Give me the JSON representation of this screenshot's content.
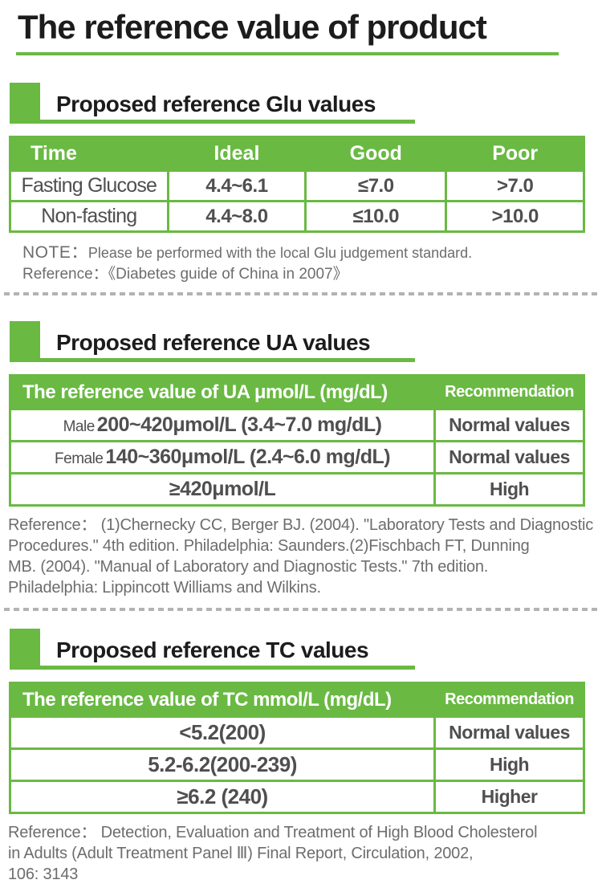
{
  "page": {
    "title": "The reference value of product"
  },
  "colors": {
    "accent_green": "#6ab943",
    "header_text": "#ffffff",
    "title_text": "#1c1c1c",
    "table_text": "#4f4f4f",
    "note_text": "#6d6d6d",
    "divider_gray": "#b4b2b2"
  },
  "sections": [
    {
      "heading": "Proposed reference Glu values",
      "table": {
        "headers": [
          "Time",
          "Ideal",
          "Good",
          "Poor"
        ],
        "rows": [
          [
            "Fasting Glucose",
            "4.4~6.1",
            "≤7.0",
            ">7.0"
          ],
          [
            "Non-fasting",
            "4.4~8.0",
            "≤10.0",
            ">10.0"
          ]
        ]
      },
      "note_label": "NOTE：",
      "note_text": "Please be performed with the local Glu judgement standard.",
      "reference_label": "Reference：",
      "reference_text": "《Diabetes guide of China in 2007》"
    },
    {
      "heading": "Proposed reference UA values",
      "table": {
        "headers": [
          "The reference value of UA  μmol/L (mg/dL)",
          "Recommendation"
        ],
        "rows": [
          {
            "prefix": "Male",
            "value": "200~420μmol/L (3.4~7.0 mg/dL)",
            "recommendation": "Normal values"
          },
          {
            "prefix": "Female",
            "value": "140~360μmol/L (2.4~6.0 mg/dL)",
            "recommendation": "Normal values"
          },
          {
            "prefix": "",
            "value": "≥420μmol/L",
            "recommendation": "High"
          }
        ]
      },
      "reference_lines": [
        "Reference： (1)Chernecky CC, Berger BJ. (2004). \"Laboratory Tests and Diagnostic",
        "Procedures.\" 4th edition. Philadelphia: Saunders.(2)Fischbach FT, Dunning",
        "MB. (2004). \"Manual of Laboratory and Diagnostic Tests.\" 7th edition.",
        "Philadelphia: Lippincott Williams and Wilkins."
      ]
    },
    {
      "heading": "Proposed reference TC values",
      "table": {
        "headers": [
          "The reference value of TC  mmol/L (mg/dL)",
          "Recommendation"
        ],
        "rows": [
          {
            "value": "<5.2(200)",
            "recommendation": "Normal values"
          },
          {
            "value": "5.2-6.2(200-239)",
            "recommendation": "High"
          },
          {
            "value": "≥6.2 (240)",
            "recommendation": "Higher"
          }
        ]
      },
      "reference_lines": [
        "Reference： Detection, Evaluation and Treatment of High Blood Cholesterol",
        "in Adults (Adult Treatment Panel Ⅲ) Final Report, Circulation, 2002,",
        "106: 3143"
      ]
    }
  ]
}
